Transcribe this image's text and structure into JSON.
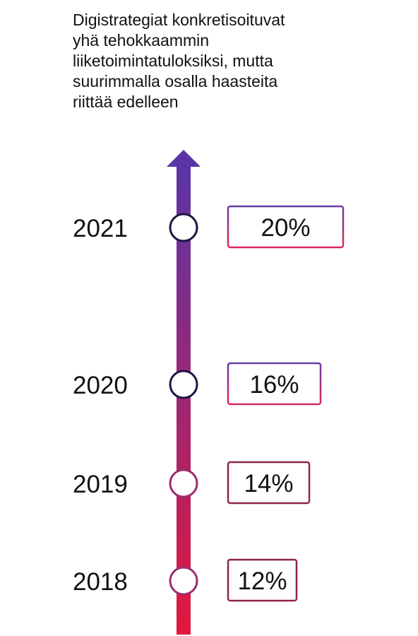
{
  "title_lines": [
    "Digistrategiat konkretisoituvat",
    "yhä tehokkaammin",
    "liiketoimintatuloksiksi, mutta",
    "suurimmalla osalla haasteita",
    "riittää edelleen"
  ],
  "colors": {
    "gradient_top": "#5a35a8",
    "gradient_bottom": "#e2183d",
    "circle_dark": "#1e1445",
    "circle_light": "#9a2d6b",
    "box_purple": "#6a3ba8",
    "box_pink": "#d8275a",
    "box_dark_red": "#8c2648"
  },
  "chart_data": {
    "type": "timeline",
    "title": "Digistrategiat konkretisoituvat yhä tehokkaammin liiketoimintatuloksiksi, mutta suurimmalla osalla haasteita riittää edelleen",
    "categories": [
      "2021",
      "2020",
      "2019",
      "2018"
    ],
    "values": [
      20,
      16,
      14,
      12
    ],
    "labels": [
      "20%",
      "16%",
      "14%",
      "12%"
    ],
    "unit": "%"
  }
}
